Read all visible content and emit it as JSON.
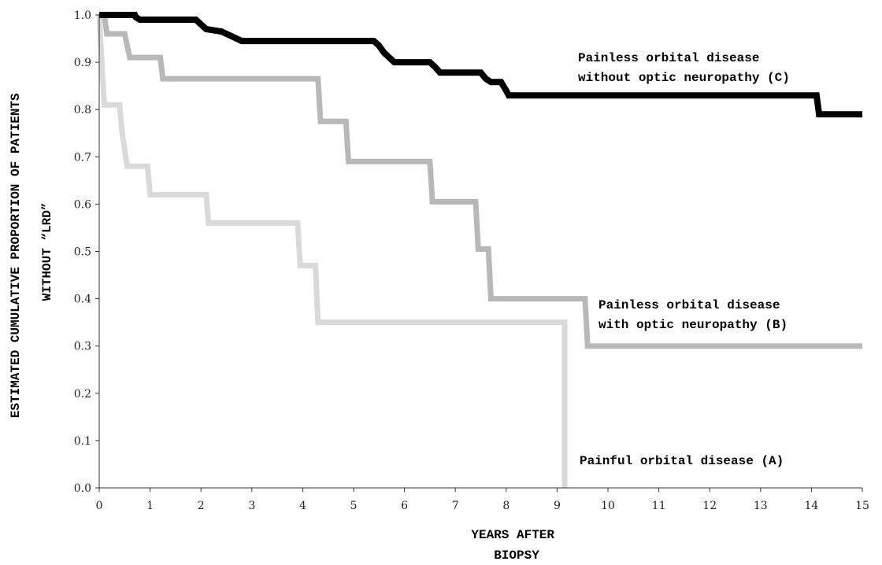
{
  "chart_data": {
    "type": "line",
    "step": true,
    "xlabel": [
      "YEARS AFTER",
      "BIOPSY"
    ],
    "ylabel": [
      "ESTIMATED CUMULATIVE PROPORTION OF PATIENTS",
      "WITHOUT “LRD”"
    ],
    "xlim": [
      0,
      15
    ],
    "ylim": [
      0,
      1
    ],
    "xticks": [
      0,
      1,
      2,
      3,
      4,
      5,
      6,
      7,
      8,
      9,
      10,
      11,
      12,
      13,
      14,
      15
    ],
    "yticks": [
      "0.0",
      "0.1",
      "0.2",
      "0.3",
      "0.4",
      "0.5",
      "0.6",
      "0.7",
      "0.8",
      "0.9",
      "1.0"
    ],
    "grid": false,
    "series": [
      {
        "name": [
          "Painful orbital disease (A)"
        ],
        "color": "#d9d9d9",
        "points": [
          [
            0,
            1.0
          ],
          [
            0.03,
            0.94
          ],
          [
            0.06,
            0.88
          ],
          [
            0.1,
            0.81
          ],
          [
            0.4,
            0.81
          ],
          [
            0.45,
            0.75
          ],
          [
            0.55,
            0.68
          ],
          [
            0.95,
            0.68
          ],
          [
            1.0,
            0.62
          ],
          [
            2.1,
            0.62
          ],
          [
            2.15,
            0.56
          ],
          [
            3.9,
            0.56
          ],
          [
            3.95,
            0.47
          ],
          [
            4.25,
            0.47
          ],
          [
            4.3,
            0.35
          ],
          [
            9.15,
            0.35
          ],
          [
            9.15,
            0.0
          ]
        ]
      },
      {
        "name": [
          "Painless orbital disease",
          "with optic neuropathy (B)"
        ],
        "color": "#b8b8b8",
        "points": [
          [
            0,
            1.0
          ],
          [
            0.1,
            1.0
          ],
          [
            0.15,
            0.96
          ],
          [
            0.5,
            0.96
          ],
          [
            0.6,
            0.91
          ],
          [
            1.2,
            0.91
          ],
          [
            1.25,
            0.865
          ],
          [
            4.3,
            0.865
          ],
          [
            4.35,
            0.775
          ],
          [
            4.85,
            0.775
          ],
          [
            4.9,
            0.69
          ],
          [
            6.5,
            0.69
          ],
          [
            6.55,
            0.605
          ],
          [
            7.4,
            0.605
          ],
          [
            7.45,
            0.505
          ],
          [
            7.65,
            0.505
          ],
          [
            7.7,
            0.4
          ],
          [
            9.55,
            0.4
          ],
          [
            9.6,
            0.3
          ],
          [
            15,
            0.3
          ]
        ]
      },
      {
        "name": [
          "Painless orbital disease",
          "without optic neuropathy (C)"
        ],
        "color": "#000000",
        "points": [
          [
            0,
            1.0
          ],
          [
            0.7,
            1.0
          ],
          [
            0.72,
            0.995
          ],
          [
            0.8,
            0.99
          ],
          [
            1.9,
            0.99
          ],
          [
            2.0,
            0.98
          ],
          [
            2.1,
            0.97
          ],
          [
            2.4,
            0.965
          ],
          [
            2.6,
            0.955
          ],
          [
            2.8,
            0.945
          ],
          [
            5.4,
            0.945
          ],
          [
            5.5,
            0.935
          ],
          [
            5.6,
            0.92
          ],
          [
            5.7,
            0.91
          ],
          [
            5.8,
            0.9
          ],
          [
            6.5,
            0.9
          ],
          [
            6.6,
            0.89
          ],
          [
            6.7,
            0.878
          ],
          [
            7.5,
            0.878
          ],
          [
            7.6,
            0.865
          ],
          [
            7.7,
            0.858
          ],
          [
            7.9,
            0.858
          ],
          [
            8.0,
            0.84
          ],
          [
            8.05,
            0.83
          ],
          [
            14.1,
            0.83
          ],
          [
            14.15,
            0.79
          ],
          [
            15,
            0.79
          ]
        ]
      }
    ]
  }
}
